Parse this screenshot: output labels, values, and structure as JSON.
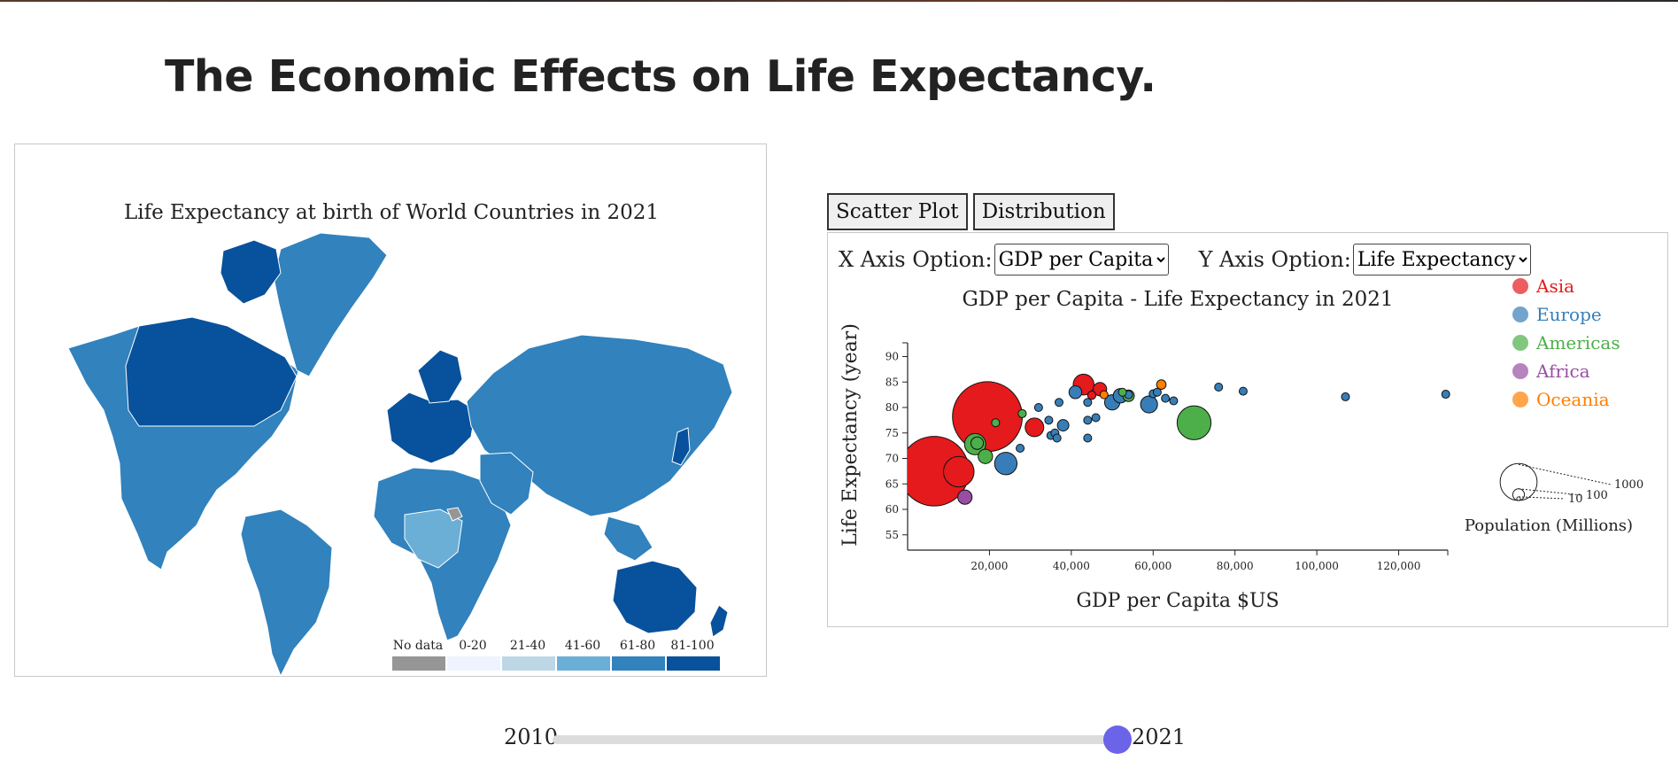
{
  "page": {
    "title": "The Economic Effects on Life Expectancy."
  },
  "map": {
    "title": "Life Expectancy at birth of World Countries in 2021",
    "legend": [
      {
        "label": "No data",
        "color": "#969696"
      },
      {
        "label": "0-20",
        "color": "#eff3ff"
      },
      {
        "label": "21-40",
        "color": "#bdd7e7"
      },
      {
        "label": "41-60",
        "color": "#6baed6"
      },
      {
        "label": "61-80",
        "color": "#3182bd"
      },
      {
        "label": "81-100",
        "color": "#08519c"
      }
    ]
  },
  "tabs": [
    {
      "label": "Scatter Plot"
    },
    {
      "label": "Distribution"
    }
  ],
  "controls": {
    "x_label": "X Axis Option:",
    "x_value": "GDP per Capita",
    "y_label": "Y Axis Option:",
    "y_value": "Life Expectancy"
  },
  "chart_data": {
    "type": "scatter",
    "title": "GDP per Capita - Life Expectancy in 2021",
    "xlabel": "GDP per Capita $US",
    "ylabel": "Life Expectancy (year)",
    "xlim": [
      0,
      132000
    ],
    "ylim": [
      52,
      92
    ],
    "xticks": [
      "20,000",
      "40,000",
      "60,000",
      "80,000",
      "100,000",
      "120,000"
    ],
    "yticks": [
      "55",
      "60",
      "65",
      "70",
      "75",
      "80",
      "85",
      "90"
    ],
    "legend_position": "top-right",
    "size_legend": {
      "title": "Population (Millions)",
      "values": [
        1000,
        100,
        10
      ]
    },
    "series": [
      {
        "name": "Asia",
        "color": "#e41a1c",
        "points": [
          {
            "x": 6500,
            "y": 67.5,
            "pop": 1400
          },
          {
            "x": 19500,
            "y": 78.2,
            "pop": 1410
          },
          {
            "x": 12500,
            "y": 67.4,
            "pop": 270
          },
          {
            "x": 31000,
            "y": 76.1,
            "pop": 100
          },
          {
            "x": 43000,
            "y": 84.5,
            "pop": 125
          },
          {
            "x": 47000,
            "y": 83.6,
            "pop": 52
          },
          {
            "x": 45000,
            "y": 82.4,
            "pop": 20
          }
        ]
      },
      {
        "name": "Europe",
        "color": "#377eb8",
        "points": [
          {
            "x": 24000,
            "y": 69.0,
            "pop": 145
          },
          {
            "x": 27500,
            "y": 72.0,
            "pop": 10
          },
          {
            "x": 32000,
            "y": 80.0,
            "pop": 10
          },
          {
            "x": 34500,
            "y": 77.5,
            "pop": 10
          },
          {
            "x": 35000,
            "y": 74.5,
            "pop": 10
          },
          {
            "x": 36000,
            "y": 75.0,
            "pop": 10
          },
          {
            "x": 36500,
            "y": 74.0,
            "pop": 10
          },
          {
            "x": 37000,
            "y": 81.0,
            "pop": 10
          },
          {
            "x": 38000,
            "y": 76.5,
            "pop": 38
          },
          {
            "x": 41000,
            "y": 83.0,
            "pop": 47
          },
          {
            "x": 44000,
            "y": 81.0,
            "pop": 5
          },
          {
            "x": 44000,
            "y": 77.5,
            "pop": 5
          },
          {
            "x": 44000,
            "y": 74.0,
            "pop": 3
          },
          {
            "x": 46000,
            "y": 78.0,
            "pop": 10
          },
          {
            "x": 50000,
            "y": 81.0,
            "pop": 67
          },
          {
            "x": 52000,
            "y": 82.3,
            "pop": 60
          },
          {
            "x": 54000,
            "y": 82.5,
            "pop": 10
          },
          {
            "x": 59000,
            "y": 80.6,
            "pop": 83
          },
          {
            "x": 60000,
            "y": 82.7,
            "pop": 10
          },
          {
            "x": 61000,
            "y": 83.0,
            "pop": 10
          },
          {
            "x": 63000,
            "y": 81.8,
            "pop": 10
          },
          {
            "x": 65000,
            "y": 81.3,
            "pop": 5
          },
          {
            "x": 76000,
            "y": 84.0,
            "pop": 5
          },
          {
            "x": 82000,
            "y": 83.2,
            "pop": 5
          },
          {
            "x": 107000,
            "y": 82.1,
            "pop": 5
          },
          {
            "x": 131500,
            "y": 82.6,
            "pop": 2
          }
        ]
      },
      {
        "name": "Americas",
        "color": "#4daf4a",
        "points": [
          {
            "x": 16500,
            "y": 72.8,
            "pop": 130
          },
          {
            "x": 17000,
            "y": 73.0,
            "pop": 45
          },
          {
            "x": 19000,
            "y": 70.4,
            "pop": 60
          },
          {
            "x": 21500,
            "y": 77.0,
            "pop": 10
          },
          {
            "x": 28000,
            "y": 78.8,
            "pop": 19
          },
          {
            "x": 52500,
            "y": 83.0,
            "pop": 10
          },
          {
            "x": 54000,
            "y": 82.3,
            "pop": 38
          },
          {
            "x": 70000,
            "y": 77.0,
            "pop": 332
          }
        ]
      },
      {
        "name": "Africa",
        "color": "#984ea3",
        "points": [
          {
            "x": 14000,
            "y": 62.4,
            "pop": 59
          }
        ]
      },
      {
        "name": "Oceania",
        "color": "#ff7f00",
        "points": [
          {
            "x": 62000,
            "y": 84.5,
            "pop": 26
          },
          {
            "x": 48000,
            "y": 82.5,
            "pop": 5
          }
        ]
      }
    ]
  },
  "slider": {
    "start_label": "2010",
    "end_label": "2021",
    "min": 2010,
    "max": 2021,
    "value": 2021
  }
}
